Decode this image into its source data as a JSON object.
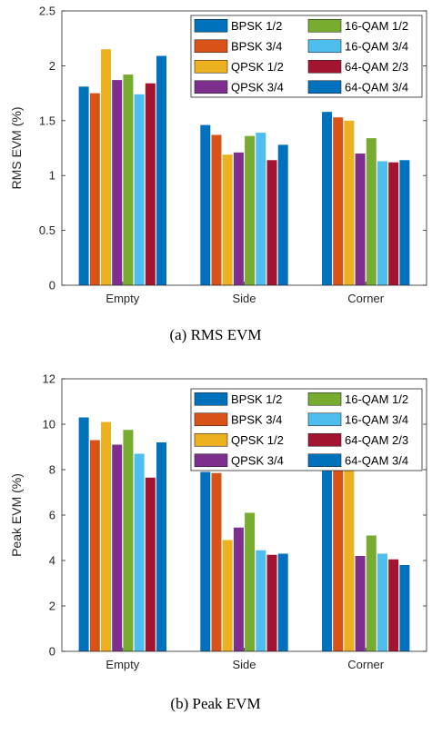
{
  "chart_data": [
    {
      "type": "bar",
      "categories": [
        "Empty",
        "Side",
        "Corner"
      ],
      "ylabel": "RMS EVM (%)",
      "ylim": [
        0,
        2.5
      ],
      "yticks": [
        "0",
        "0.5",
        "1",
        "1.5",
        "2",
        "2.5"
      ],
      "caption": "(a) RMS EVM",
      "legend_position": "top-right",
      "series": [
        {
          "name": "BPSK 1/2",
          "color": "#0072BD",
          "values": [
            1.81,
            1.46,
            1.58
          ]
        },
        {
          "name": "BPSK 3/4",
          "color": "#D95319",
          "values": [
            1.75,
            1.37,
            1.53
          ]
        },
        {
          "name": "QPSK 1/2",
          "color": "#EDB120",
          "values": [
            2.15,
            1.19,
            1.5
          ]
        },
        {
          "name": "QPSK 3/4",
          "color": "#7E2F8E",
          "values": [
            1.87,
            1.21,
            1.2
          ]
        },
        {
          "name": "16-QAM 1/2",
          "color": "#77AC30",
          "values": [
            1.92,
            1.36,
            1.34
          ]
        },
        {
          "name": "16-QAM 3/4",
          "color": "#4DBEEE",
          "values": [
            1.74,
            1.39,
            1.13
          ]
        },
        {
          "name": "64-QAM 2/3",
          "color": "#A2142F",
          "values": [
            1.84,
            1.14,
            1.12
          ]
        },
        {
          "name": "64-QAM 3/4",
          "color": "#0072BD",
          "values": [
            2.09,
            1.28,
            1.14
          ]
        }
      ]
    },
    {
      "type": "bar",
      "categories": [
        "Empty",
        "Side",
        "Corner"
      ],
      "ylabel": "Peak EVM (%)",
      "ylim": [
        0,
        12
      ],
      "yticks": [
        "0",
        "2",
        "4",
        "6",
        "8",
        "10",
        "12"
      ],
      "caption": "(b) Peak EVM",
      "legend_position": "top-right",
      "series": [
        {
          "name": "BPSK 1/2",
          "color": "#0072BD",
          "values": [
            10.3,
            7.9,
            8.9
          ]
        },
        {
          "name": "BPSK 3/4",
          "color": "#D95319",
          "values": [
            9.3,
            7.85,
            8.8
          ]
        },
        {
          "name": "QPSK 1/2",
          "color": "#EDB120",
          "values": [
            10.1,
            4.9,
            8.8
          ]
        },
        {
          "name": "QPSK 3/4",
          "color": "#7E2F8E",
          "values": [
            9.1,
            5.45,
            4.2
          ]
        },
        {
          "name": "16-QAM 1/2",
          "color": "#77AC30",
          "values": [
            9.75,
            6.1,
            5.1
          ]
        },
        {
          "name": "16-QAM 3/4",
          "color": "#4DBEEE",
          "values": [
            8.7,
            4.45,
            4.3
          ]
        },
        {
          "name": "64-QAM 2/3",
          "color": "#A2142F",
          "values": [
            7.65,
            4.25,
            4.05
          ]
        },
        {
          "name": "64-QAM 3/4",
          "color": "#0072BD",
          "values": [
            9.2,
            4.3,
            3.8
          ]
        }
      ]
    }
  ]
}
